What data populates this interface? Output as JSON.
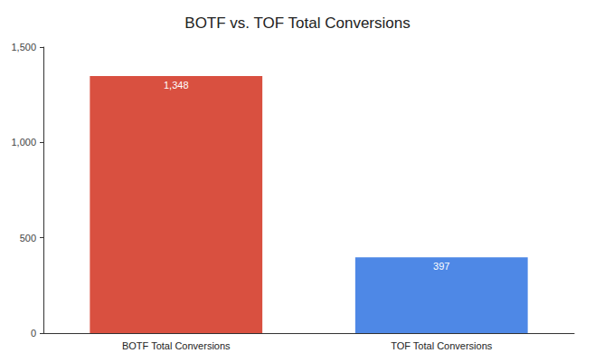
{
  "chart_data": {
    "type": "bar",
    "title": "BOTF vs. TOF Total Conversions",
    "categories": [
      "BOTF Total Conversions",
      "TOF Total Conversions"
    ],
    "values": [
      1348,
      397
    ],
    "value_labels": [
      "1,348",
      "397"
    ],
    "colors": [
      "#d95040",
      "#4e88e6"
    ],
    "ylim": [
      0,
      1500
    ],
    "yticks": [
      0,
      500,
      {
        "value": 1000,
        "label": "1,000"
      },
      {
        "value": 1500,
        "label": "1,500"
      }
    ],
    "grid": false,
    "data_labels": true
  }
}
